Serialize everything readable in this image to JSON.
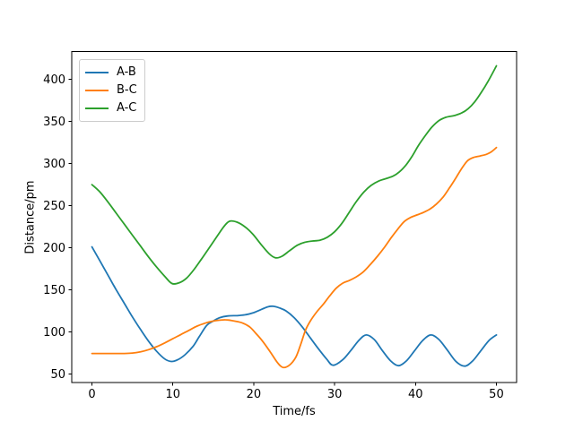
{
  "figure": {
    "background": "#ffffff",
    "text_color": "#000000"
  },
  "chart_data": {
    "type": "line",
    "title": "",
    "xlabel": "Time/fs",
    "ylabel": "Distance/pm",
    "xlim": [
      -2.5,
      52.5
    ],
    "ylim": [
      40,
      433
    ],
    "xticks": [
      0,
      10,
      20,
      30,
      40,
      50
    ],
    "yticks": [
      50,
      100,
      150,
      200,
      250,
      300,
      350,
      400
    ],
    "grid": false,
    "legend": {
      "position": "upper left"
    },
    "series": [
      {
        "name": "A-B",
        "color": "#1f77b4",
        "points": [
          [
            0,
            201
          ],
          [
            1,
            184
          ],
          [
            2,
            167
          ],
          [
            3,
            150
          ],
          [
            4,
            134
          ],
          [
            5,
            118
          ],
          [
            6,
            103
          ],
          [
            7,
            89
          ],
          [
            8,
            77
          ],
          [
            9,
            68
          ],
          [
            9.8,
            65
          ],
          [
            10.6,
            67
          ],
          [
            11.5,
            73
          ],
          [
            12.5,
            83
          ],
          [
            13.3,
            95
          ],
          [
            14.2,
            108
          ],
          [
            15,
            113
          ],
          [
            15.8,
            117
          ],
          [
            16.8,
            119
          ],
          [
            18,
            119.5
          ],
          [
            19,
            120.5
          ],
          [
            20,
            123
          ],
          [
            21,
            127
          ],
          [
            21.8,
            130
          ],
          [
            22.4,
            130.5
          ],
          [
            23.2,
            128.5
          ],
          [
            24,
            125
          ],
          [
            25,
            117
          ],
          [
            26,
            106
          ],
          [
            27,
            93
          ],
          [
            28,
            80
          ],
          [
            29,
            68
          ],
          [
            29.8,
            60.5
          ],
          [
            31,
            67
          ],
          [
            32,
            78
          ],
          [
            33,
            90
          ],
          [
            33.9,
            96.5
          ],
          [
            34.9,
            91
          ],
          [
            35.9,
            78
          ],
          [
            36.9,
            66
          ],
          [
            37.9,
            60
          ],
          [
            38.9,
            66
          ],
          [
            39.9,
            78
          ],
          [
            40.9,
            90
          ],
          [
            41.9,
            96.5
          ],
          [
            42.9,
            91
          ],
          [
            43.9,
            79
          ],
          [
            45,
            65
          ],
          [
            46.1,
            59.5
          ],
          [
            47.1,
            66
          ],
          [
            48.1,
            78
          ],
          [
            49.1,
            90
          ],
          [
            50,
            96.5
          ]
        ]
      },
      {
        "name": "B-C",
        "color": "#ff7f0e",
        "points": [
          [
            0,
            74.5
          ],
          [
            1,
            74.5
          ],
          [
            2,
            74.5
          ],
          [
            3,
            74.5
          ],
          [
            4,
            74.5
          ],
          [
            5,
            75
          ],
          [
            6,
            76.5
          ],
          [
            7,
            79
          ],
          [
            8,
            82.5
          ],
          [
            9,
            87
          ],
          [
            10,
            92
          ],
          [
            11,
            97
          ],
          [
            12,
            102
          ],
          [
            13,
            107
          ],
          [
            14,
            110.5
          ],
          [
            15,
            113
          ],
          [
            15.8,
            114
          ],
          [
            16.5,
            114.5
          ],
          [
            17.3,
            113.5
          ],
          [
            18.5,
            111
          ],
          [
            19.5,
            106
          ],
          [
            20.3,
            98
          ],
          [
            21.1,
            89
          ],
          [
            22,
            77
          ],
          [
            22.9,
            64
          ],
          [
            23.6,
            58
          ],
          [
            24.4,
            60.5
          ],
          [
            25.2,
            70
          ],
          [
            25.8,
            85
          ],
          [
            26.4,
            102
          ],
          [
            27,
            113
          ],
          [
            27.8,
            124
          ],
          [
            28.6,
            133
          ],
          [
            29.4,
            143
          ],
          [
            30.2,
            152
          ],
          [
            31,
            158
          ],
          [
            31.8,
            161
          ],
          [
            32.6,
            165
          ],
          [
            33.5,
            171
          ],
          [
            34.4,
            180
          ],
          [
            35.3,
            190
          ],
          [
            36.2,
            201
          ],
          [
            37,
            212
          ],
          [
            37.8,
            222
          ],
          [
            38.6,
            231
          ],
          [
            39.4,
            236
          ],
          [
            40.2,
            239
          ],
          [
            41,
            242
          ],
          [
            41.8,
            246
          ],
          [
            42.6,
            252
          ],
          [
            43.4,
            260
          ],
          [
            44.2,
            271
          ],
          [
            45,
            283
          ],
          [
            45.7,
            294
          ],
          [
            46.4,
            303
          ],
          [
            47.1,
            307
          ],
          [
            48,
            309
          ],
          [
            48.8,
            311
          ],
          [
            49.4,
            314
          ],
          [
            50,
            319
          ]
        ]
      },
      {
        "name": "A-C",
        "color": "#2ca02c",
        "points": [
          [
            0,
            275
          ],
          [
            1,
            266
          ],
          [
            2,
            254
          ],
          [
            3,
            241
          ],
          [
            4,
            228
          ],
          [
            5,
            215
          ],
          [
            6,
            202
          ],
          [
            7,
            189
          ],
          [
            8,
            177
          ],
          [
            9,
            166
          ],
          [
            9.9,
            157.5
          ],
          [
            10.8,
            158.5
          ],
          [
            11.7,
            164
          ],
          [
            12.6,
            174
          ],
          [
            13.5,
            186
          ],
          [
            14.5,
            200
          ],
          [
            15.5,
            214
          ],
          [
            16.3,
            225
          ],
          [
            17,
            231.5
          ],
          [
            17.9,
            230.5
          ],
          [
            18.9,
            225
          ],
          [
            19.9,
            216
          ],
          [
            20.9,
            204
          ],
          [
            21.9,
            193
          ],
          [
            22.7,
            188
          ],
          [
            23.5,
            190
          ],
          [
            24.5,
            197
          ],
          [
            25.4,
            203
          ],
          [
            26.3,
            206.5
          ],
          [
            27.3,
            208
          ],
          [
            28.2,
            209
          ],
          [
            29.1,
            212.5
          ],
          [
            30,
            219
          ],
          [
            30.9,
            229
          ],
          [
            31.8,
            242
          ],
          [
            32.7,
            255
          ],
          [
            33.6,
            266
          ],
          [
            34.5,
            274
          ],
          [
            35.4,
            279
          ],
          [
            36.3,
            282
          ],
          [
            37.2,
            285
          ],
          [
            38,
            290
          ],
          [
            38.8,
            298
          ],
          [
            39.6,
            309
          ],
          [
            40.4,
            322
          ],
          [
            41.2,
            333
          ],
          [
            42,
            343
          ],
          [
            42.9,
            351
          ],
          [
            43.8,
            355
          ],
          [
            44.8,
            357
          ],
          [
            45.7,
            360
          ],
          [
            46.5,
            365
          ],
          [
            47.3,
            373
          ],
          [
            48.1,
            384
          ],
          [
            49,
            398
          ],
          [
            50,
            416
          ]
        ]
      }
    ]
  }
}
